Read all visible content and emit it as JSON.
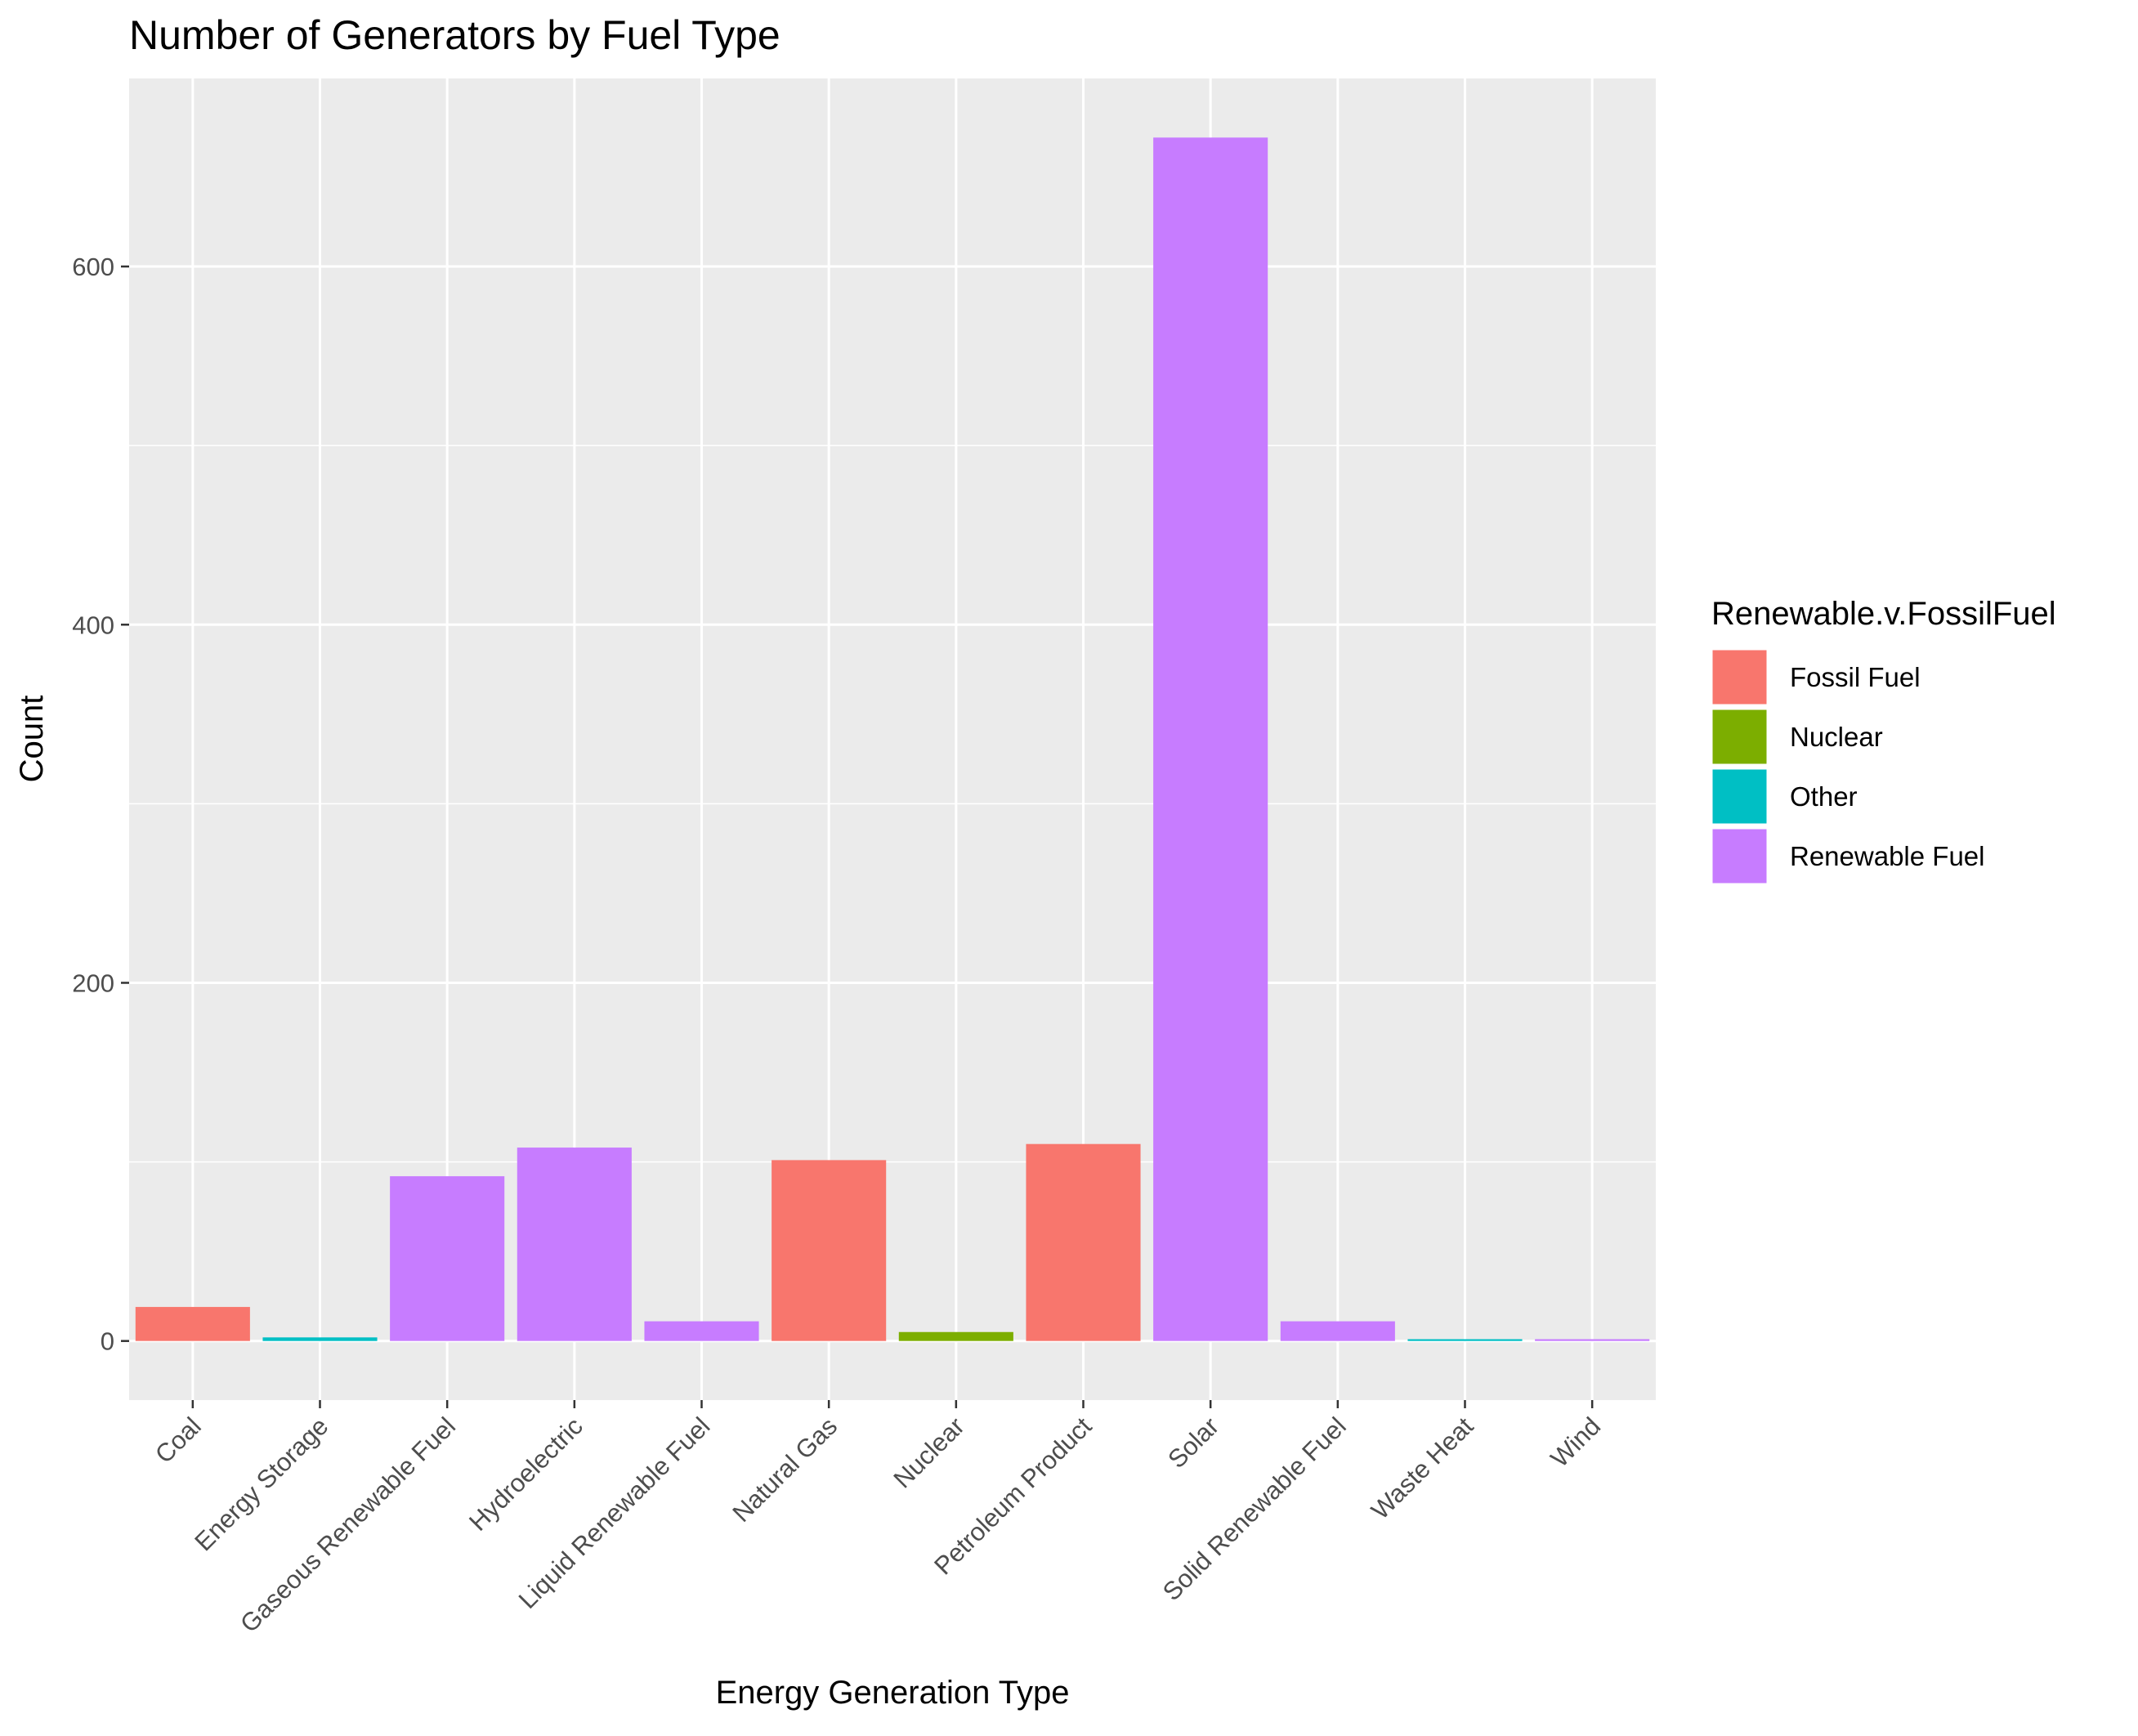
{
  "chart_data": {
    "type": "bar",
    "title": "Number of Generators by Fuel Type",
    "xlabel": "Energy Generation Type",
    "ylabel": "Count",
    "ylim": [
      -33,
      705
    ],
    "yticks": [
      0,
      200,
      400,
      600
    ],
    "grid": true,
    "categories": [
      "Coal",
      "Energy Storage",
      "Gaseous Renewable Fuel",
      "Hydroelectric",
      "Liquid Renewable Fuel",
      "Natural Gas",
      "Nuclear",
      "Petroleum Product",
      "Solar",
      "Solid Renewable Fuel",
      "Waste Heat",
      "Wind"
    ],
    "values": [
      19,
      2,
      92,
      108,
      11,
      101,
      5,
      110,
      672,
      11,
      1,
      1
    ],
    "groups": [
      "Fossil Fuel",
      "Other",
      "Renewable Fuel",
      "Renewable Fuel",
      "Renewable Fuel",
      "Fossil Fuel",
      "Nuclear",
      "Fossil Fuel",
      "Renewable Fuel",
      "Renewable Fuel",
      "Other",
      "Renewable Fuel"
    ],
    "legend": {
      "title": "Renewable.v.FossilFuel",
      "placement": "right",
      "entries": [
        {
          "label": "Fossil Fuel",
          "color": "#F8766D"
        },
        {
          "label": "Nuclear",
          "color": "#7CAE00"
        },
        {
          "label": "Other",
          "color": "#00BFC4"
        },
        {
          "label": "Renewable Fuel",
          "color": "#C77CFF"
        }
      ]
    },
    "colors": {
      "panel": "#EBEBEB",
      "grid": "#FFFFFF",
      "tick": "#333333"
    }
  }
}
